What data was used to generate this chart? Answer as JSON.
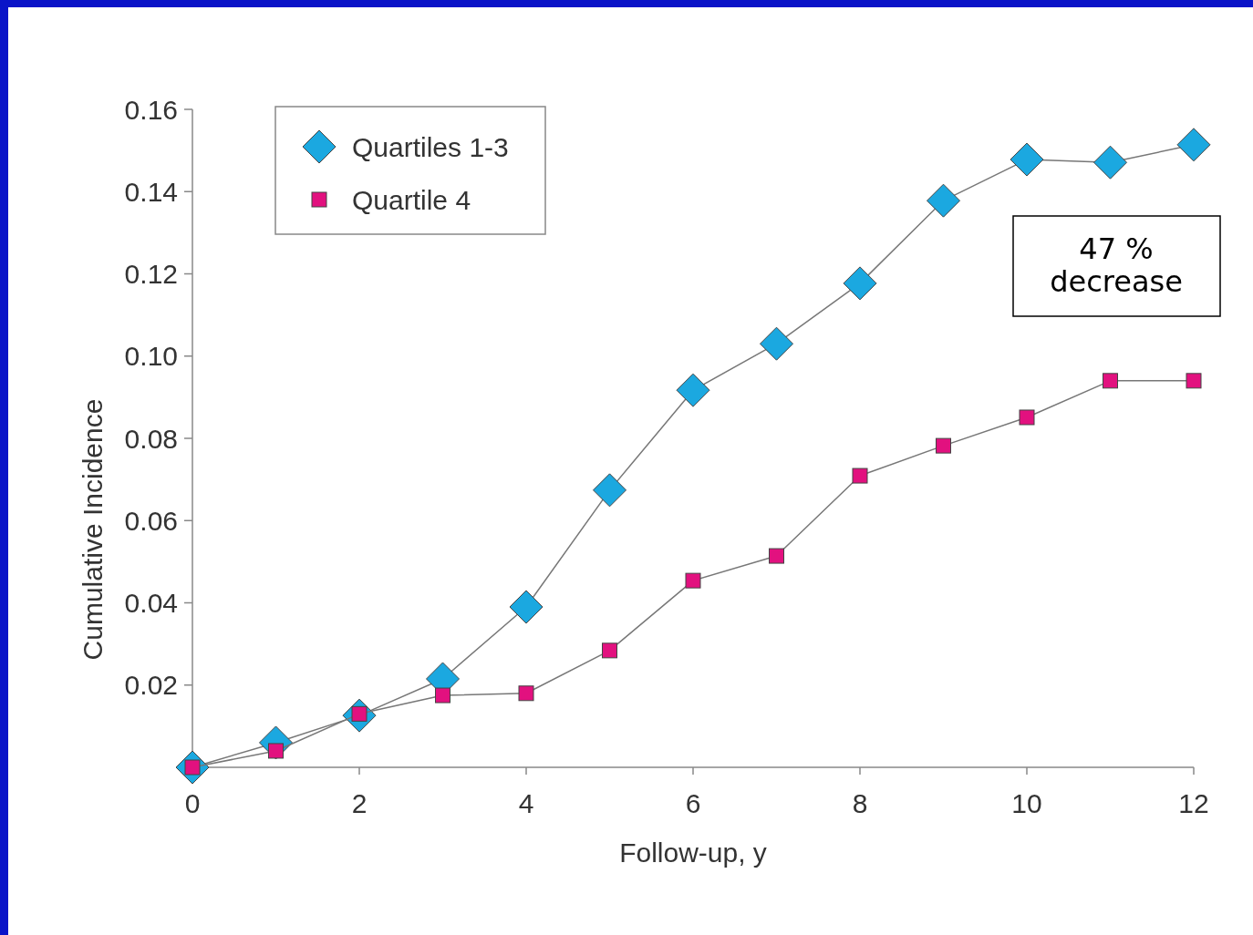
{
  "chart_data": {
    "type": "line",
    "xlabel": "Follow-up, y",
    "ylabel": "Cumulative Incidence",
    "x": [
      0,
      1,
      2,
      3,
      4,
      5,
      6,
      7,
      8,
      9,
      10,
      11,
      12
    ],
    "series": [
      {
        "name": "Quartiles 1-3",
        "color": "#1ba8e0",
        "marker": "diamond",
        "values": [
          0,
          0.006,
          0.0126,
          0.0215,
          0.039,
          0.0674,
          0.0917,
          0.103,
          0.1177,
          0.1378,
          0.1478,
          0.1471,
          0.1514
        ]
      },
      {
        "name": "Quartile 4",
        "color": "#e2117f",
        "marker": "square",
        "values": [
          0,
          0.004,
          0.013,
          0.0175,
          0.018,
          0.0284,
          0.0454,
          0.0514,
          0.0709,
          0.0782,
          0.0851,
          0.094,
          0.094
        ]
      }
    ],
    "xlim": [
      0,
      12
    ],
    "xticks": [
      0,
      2,
      4,
      6,
      8,
      10,
      12
    ],
    "ylim": [
      0,
      0.16
    ],
    "yticks": [
      {
        "value": 0.02,
        "label": "0.02"
      },
      {
        "value": 0.04,
        "label": "0.04"
      },
      {
        "value": 0.06,
        "label": "0.06"
      },
      {
        "value": 0.08,
        "label": "0.08"
      },
      {
        "value": 0.1,
        "label": "0.10"
      },
      {
        "value": 0.12,
        "label": "0.12"
      },
      {
        "value": 0.14,
        "label": "0.14"
      },
      {
        "value": 0.16,
        "label": "0.16"
      }
    ],
    "grid": false,
    "legend": "top left",
    "annotations": [
      "47 %\ndecrease"
    ]
  }
}
